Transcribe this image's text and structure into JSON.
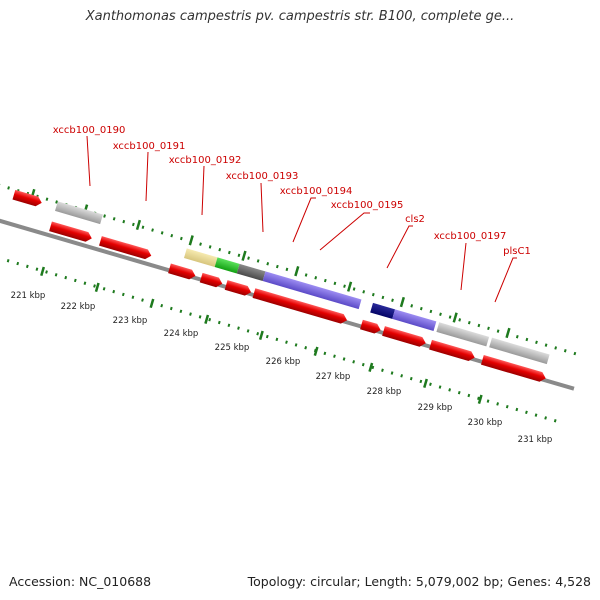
{
  "header": {
    "title": "Xanthomonas campestris pv. campestris str. B100, complete ge..."
  },
  "footer": {
    "accession": "Accession: NC_010688",
    "topology": "Topology: circular; Length: 5,079,002 bp; Genes: 4,528"
  },
  "ruler": {
    "unit": "kbp",
    "labels": [
      "221 kbp",
      "222 kbp",
      "223 kbp",
      "224 kbp",
      "225 kbp",
      "226 kbp",
      "227 kbp",
      "228 kbp",
      "229 kbp",
      "230 kbp",
      "231 kbp"
    ],
    "tick_color": "#1e7a1e"
  },
  "gene_labels": [
    "xccb100_0190",
    "xccb100_0191",
    "xccb100_0192",
    "xccb100_0193",
    "xccb100_0194",
    "xccb100_0195",
    "cls2",
    "xccb100_0197",
    "plsC1"
  ],
  "colors": {
    "label_text": "#cc0000",
    "leader_line": "#cc0000",
    "cds_red": "#e00000",
    "backbone": "#8a8a8a"
  }
}
